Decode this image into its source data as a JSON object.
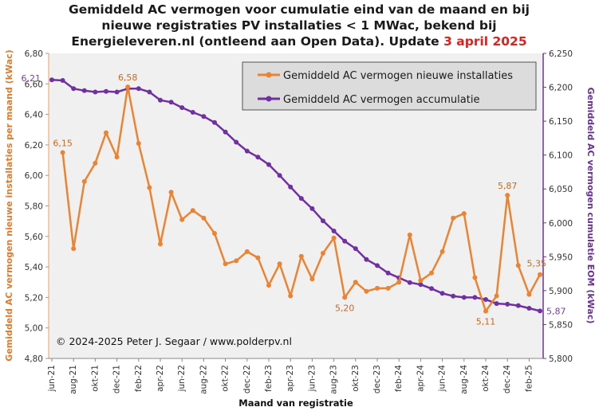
{
  "title": {
    "line1": "Gemiddeld AC vermogen voor cumulatie  eind van de maand en bij",
    "line2": "nieuwe registraties PV installaties  < 1 MWac, bekend bij",
    "line3_prefix": "Energieleveren.nl  (ontleend aan Open Data). Update ",
    "line3_date": "3 april 2025"
  },
  "colors": {
    "orange": "#ea8432",
    "purple": "#7030a0",
    "accent_red": "#e0201b",
    "plot_bg": "#f0f0f0",
    "legend_bg": "#dcdcdc"
  },
  "copyright": "© 2024-2025  Peter J. Segaar / www.polderpv.nl",
  "chart_data": {
    "type": "line",
    "xlabel": "Maand van registratie",
    "ylabel_left": "Gemiddeld AC vermogen nieuwe installaties per maand (kWac)",
    "ylabel_right": "Gemiddeld AC vermogen cumulatie EOM (kWac)",
    "ylim_left": [
      4.8,
      6.8
    ],
    "ylim_right": [
      5800,
      6250
    ],
    "yticks_left": [
      "4,80",
      "5,00",
      "5,20",
      "5,40",
      "5,60",
      "5,80",
      "6,00",
      "6,20",
      "6,40",
      "6,60",
      "6,80"
    ],
    "yticks_right": [
      "5,800",
      "5,850",
      "5,900",
      "5,950",
      "6,000",
      "6,050",
      "6,100",
      "6,150",
      "6,200",
      "6,250"
    ],
    "x_tick_labels": [
      "jun-21",
      "aug-21",
      "okt-21",
      "dec-21",
      "feb-22",
      "apr-22",
      "jun-22",
      "aug-22",
      "okt-22",
      "dec-22",
      "feb-23",
      "apr-23",
      "jun-23",
      "aug-23",
      "okt-23",
      "dec-23",
      "feb-24",
      "apr-24",
      "jun-24",
      "aug-24",
      "okt-24",
      "dec-24",
      "feb-25"
    ],
    "x_months": [
      "jun-21",
      "jul-21",
      "aug-21",
      "sep-21",
      "okt-21",
      "nov-21",
      "dec-21",
      "jan-22",
      "feb-22",
      "mrt-22",
      "apr-22",
      "mei-22",
      "jun-22",
      "jul-22",
      "aug-22",
      "sep-22",
      "okt-22",
      "nov-22",
      "dec-22",
      "jan-23",
      "feb-23",
      "mrt-23",
      "apr-23",
      "mei-23",
      "jun-23",
      "jul-23",
      "aug-23",
      "sep-23",
      "okt-23",
      "nov-23",
      "dec-23",
      "jan-24",
      "feb-24",
      "mrt-24",
      "apr-24",
      "mei-24",
      "jun-24",
      "jul-24",
      "aug-24",
      "sep-24",
      "okt-24",
      "nov-24",
      "dec-24",
      "jan-25",
      "feb-25",
      "mrt-25"
    ],
    "legend_position": "top-right",
    "grid": false,
    "series": [
      {
        "name": "Gemiddeld AC vermogen nieuwe installaties",
        "axis": "left",
        "start_index": 1,
        "values": [
          6.15,
          5.52,
          5.96,
          6.08,
          6.28,
          6.12,
          6.58,
          6.21,
          5.92,
          5.55,
          5.89,
          5.71,
          5.77,
          5.72,
          5.62,
          5.42,
          5.44,
          5.5,
          5.46,
          5.28,
          5.42,
          5.21,
          5.47,
          5.32,
          5.49,
          5.59,
          5.2,
          5.3,
          5.24,
          5.26,
          5.26,
          5.3,
          5.61,
          5.31,
          5.36,
          5.5,
          5.72,
          5.75,
          5.33,
          5.11,
          5.21,
          5.87,
          5.41,
          5.22,
          5.35
        ]
      },
      {
        "name": "Gemiddeld AC vermogen accumulatie",
        "axis": "right",
        "start_index": 0,
        "values": [
          6211,
          6210,
          6198,
          6195,
          6193,
          6194,
          6193,
          6198,
          6198,
          6193,
          6181,
          6178,
          6170,
          6163,
          6157,
          6148,
          6134,
          6119,
          6106,
          6097,
          6086,
          6070,
          6053,
          6036,
          6021,
          6003,
          5988,
          5973,
          5962,
          5946,
          5937,
          5926,
          5919,
          5912,
          5909,
          5903,
          5896,
          5892,
          5890,
          5890,
          5887,
          5881,
          5880,
          5878,
          5874,
          5870
        ]
      }
    ],
    "annotations": [
      {
        "text": "6,15",
        "series": 0,
        "month_index": 1
      },
      {
        "text": "6,58",
        "series": 0,
        "month_index": 7
      },
      {
        "text": "5,20",
        "series": 0,
        "month_index": 27
      },
      {
        "text": "5,11",
        "series": 0,
        "month_index": 40
      },
      {
        "text": "5,87",
        "series": 0,
        "month_index": 42
      },
      {
        "text": "5,35",
        "series": 0,
        "month_index": 45
      },
      {
        "text": "6,21",
        "series": 1,
        "month_index": 0
      },
      {
        "text": "5,87",
        "series": 1,
        "month_index": 45
      }
    ]
  }
}
